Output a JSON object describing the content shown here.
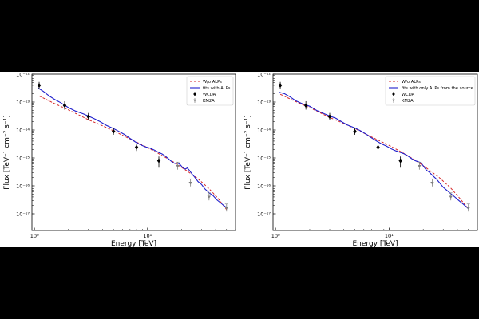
{
  "chart_data": [
    {
      "type": "line",
      "log_x": true,
      "log_y": true,
      "xlim": [
        0.95,
        60
      ],
      "ylim_exp": [
        -17.6,
        -12.0
      ],
      "xlabel": "Energy [TeV]",
      "ylabel": "Flux [TeV⁻¹ cm⁻² s⁻¹]",
      "x_tick_labels": [
        "10⁰",
        "10¹"
      ],
      "y_tick_labels": [
        "10⁻¹²",
        "10⁻¹³",
        "10⁻¹⁴",
        "10⁻¹⁵",
        "10⁻¹⁶",
        "10⁻¹⁷"
      ],
      "legend": {
        "placement": "top-right",
        "entries": [
          "W/o ALPs",
          "fits with ALPs",
          "WCDA",
          "KM2A"
        ]
      },
      "series": [
        {
          "name": "W/o ALPs",
          "style": "dashed",
          "color": "#d62728",
          "x": [
            1.1,
            1.5,
            2,
            3,
            4,
            5,
            7,
            10,
            13,
            17,
            22,
            28,
            35,
            42,
            50
          ],
          "y_exp": [
            -12.78,
            -13.05,
            -13.28,
            -13.63,
            -13.85,
            -14.03,
            -14.32,
            -14.63,
            -14.88,
            -15.15,
            -15.45,
            -15.75,
            -16.1,
            -16.45,
            -16.85
          ]
        },
        {
          "name": "fits with ALPs",
          "style": "solid",
          "color": "#1f1fcc",
          "x": [
            1.08,
            1.2,
            1.35,
            1.5,
            1.7,
            2.0,
            2.3,
            2.7,
            3.0,
            3.4,
            3.8,
            4.3,
            5.0,
            5.6,
            6.3,
            7.0,
            7.8,
            8.6,
            9.5,
            10.5,
            11.5,
            12.5,
            13.5,
            14.5,
            15.5,
            16.5,
            17.5,
            18.5,
            19.5,
            20.5,
            21.5,
            22.5,
            23.5,
            24.5,
            26,
            28,
            30,
            32,
            35,
            38,
            41,
            44,
            47,
            50
          ],
          "y_exp": [
            -12.5,
            -12.62,
            -12.78,
            -12.9,
            -13.02,
            -13.2,
            -13.32,
            -13.42,
            -13.5,
            -13.6,
            -13.7,
            -13.83,
            -13.95,
            -14.05,
            -14.17,
            -14.3,
            -14.43,
            -14.52,
            -14.6,
            -14.65,
            -14.72,
            -14.8,
            -14.86,
            -14.95,
            -15.05,
            -15.15,
            -15.2,
            -15.18,
            -15.25,
            -15.35,
            -15.4,
            -15.36,
            -15.45,
            -15.55,
            -15.68,
            -15.85,
            -15.95,
            -16.1,
            -16.25,
            -16.35,
            -16.5,
            -16.6,
            -16.7,
            -16.78
          ]
        },
        {
          "name": "WCDA",
          "style": "points",
          "marker": "diamond",
          "color": "#000000",
          "x": [
            1.1,
            1.85,
            3.0,
            5.0,
            8.0,
            12.6
          ],
          "y_exp": [
            -12.4,
            -13.12,
            -13.52,
            -14.05,
            -14.62,
            -15.1
          ],
          "err_low": [
            0.12,
            0.15,
            0.13,
            0.12,
            0.13,
            0.25
          ],
          "err_high": [
            0.12,
            0.15,
            0.13,
            0.12,
            0.13,
            0.15
          ]
        },
        {
          "name": "KM2A",
          "style": "points",
          "marker": "triangle-down",
          "color": "#808080",
          "x": [
            18.5,
            24.0,
            35.0,
            50.0
          ],
          "y_exp": [
            -15.3,
            -15.9,
            -16.4,
            -16.8
          ],
          "err_low": [
            0.12,
            0.12,
            0.12,
            0.12
          ],
          "err_high": [
            0.15,
            0.15,
            0.15,
            0.15
          ]
        }
      ]
    },
    {
      "type": "line",
      "log_x": true,
      "log_y": true,
      "xlim": [
        0.95,
        60
      ],
      "ylim_exp": [
        -17.6,
        -12.0
      ],
      "xlabel": "Energy [TeV]",
      "ylabel": "Flux [TeV⁻¹ cm⁻² s⁻¹]",
      "x_tick_labels": [
        "10⁰",
        "10¹"
      ],
      "y_tick_labels": [
        "10⁻¹²",
        "10⁻¹³",
        "10⁻¹⁴",
        "10⁻¹⁵",
        "10⁻¹⁶",
        "10⁻¹⁷"
      ],
      "legend": {
        "placement": "top-right",
        "entries": [
          "W/o ALPs",
          "fits with only ALPs from the source",
          "WCDA",
          "KM2A"
        ]
      },
      "series": [
        {
          "name": "W/o ALPs",
          "style": "dashed",
          "color": "#d62728",
          "x": [
            1.1,
            1.5,
            2,
            3,
            4,
            5,
            7,
            10,
            13,
            17,
            22,
            28,
            35,
            42,
            50
          ],
          "y_exp": [
            -12.72,
            -12.98,
            -13.2,
            -13.55,
            -13.77,
            -13.95,
            -14.25,
            -14.55,
            -14.8,
            -15.08,
            -15.4,
            -15.72,
            -16.08,
            -16.45,
            -16.82
          ]
        },
        {
          "name": "fits with only ALPs from the source",
          "style": "solid",
          "color": "#1f1fcc",
          "x": [
            1.08,
            1.2,
            1.35,
            1.5,
            1.7,
            2.0,
            2.3,
            2.7,
            3.0,
            3.4,
            3.8,
            4.3,
            5.0,
            5.6,
            6.3,
            7.0,
            7.8,
            8.6,
            9.5,
            10.5,
            11.5,
            12.5,
            13.5,
            14.5,
            15.5,
            16.5,
            17.5,
            18.5,
            19.5,
            20.5,
            21.5,
            22.5,
            23.5,
            24.5,
            26,
            28,
            30,
            32,
            35,
            38,
            41,
            44,
            47,
            50
          ],
          "y_exp": [
            -12.65,
            -12.7,
            -12.82,
            -12.95,
            -13.05,
            -13.15,
            -13.3,
            -13.42,
            -13.5,
            -13.58,
            -13.7,
            -13.82,
            -13.93,
            -14.03,
            -14.15,
            -14.28,
            -14.4,
            -14.5,
            -14.58,
            -14.68,
            -14.75,
            -14.8,
            -14.85,
            -14.92,
            -15.0,
            -15.08,
            -15.12,
            -15.15,
            -15.22,
            -15.35,
            -15.45,
            -15.5,
            -15.58,
            -15.65,
            -15.75,
            -15.9,
            -16.05,
            -16.15,
            -16.28,
            -16.4,
            -16.52,
            -16.62,
            -16.72,
            -16.82
          ]
        },
        {
          "name": "WCDA",
          "style": "points",
          "marker": "diamond",
          "color": "#000000",
          "x": [
            1.1,
            1.85,
            3.0,
            5.0,
            8.0,
            12.6
          ],
          "y_exp": [
            -12.4,
            -13.12,
            -13.52,
            -14.05,
            -14.62,
            -15.1
          ],
          "err_low": [
            0.12,
            0.15,
            0.13,
            0.12,
            0.13,
            0.25
          ],
          "err_high": [
            0.12,
            0.15,
            0.13,
            0.12,
            0.13,
            0.15
          ]
        },
        {
          "name": "KM2A",
          "style": "points",
          "marker": "triangle-down",
          "color": "#808080",
          "x": [
            18.5,
            24.0,
            35.0,
            50.0
          ],
          "y_exp": [
            -15.3,
            -15.9,
            -16.4,
            -16.8
          ],
          "err_low": [
            0.12,
            0.12,
            0.12,
            0.12
          ],
          "err_high": [
            0.15,
            0.15,
            0.15,
            0.15
          ]
        }
      ]
    }
  ]
}
